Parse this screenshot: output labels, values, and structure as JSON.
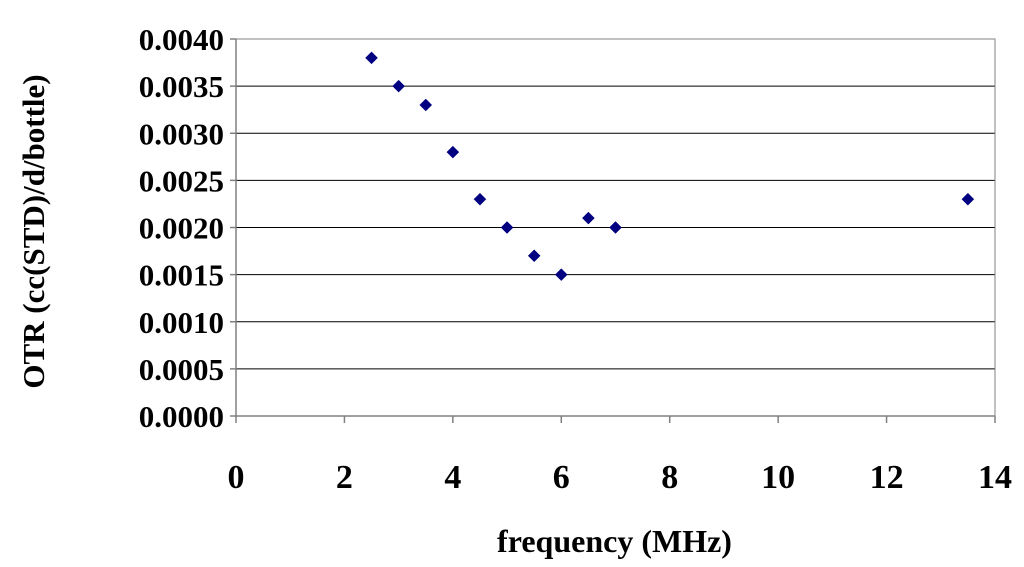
{
  "colors": {
    "marker": "#000080",
    "grid": "#000000",
    "axis": "#808080",
    "plot_border": "#808080",
    "text": "#000000"
  },
  "chart_data": {
    "type": "scatter",
    "title": "",
    "xlabel": "frequency (MHz)",
    "ylabel": "OTR (cc(STD)/d/bottle)",
    "xlim": [
      0,
      14
    ],
    "ylim": [
      0,
      0.004
    ],
    "x_ticks": [
      0,
      2,
      4,
      6,
      8,
      10,
      12,
      14
    ],
    "x_tick_labels": [
      "0",
      "2",
      "4",
      "6",
      "8",
      "10",
      "12",
      "14"
    ],
    "y_ticks": [
      0,
      0.0005,
      0.001,
      0.0015,
      0.002,
      0.0025,
      0.003,
      0.0035,
      0.004
    ],
    "y_tick_labels": [
      "0.0000",
      "0.0005",
      "0.0010",
      "0.0015",
      "0.0020",
      "0.0025",
      "0.0030",
      "0.0035",
      "0.0040"
    ],
    "grid": "horizontal",
    "legend": "none",
    "marker": "diamond",
    "points": [
      {
        "x": 2.5,
        "y": 0.0038
      },
      {
        "x": 3.0,
        "y": 0.0035
      },
      {
        "x": 3.5,
        "y": 0.0033
      },
      {
        "x": 4.0,
        "y": 0.0028
      },
      {
        "x": 4.5,
        "y": 0.0023
      },
      {
        "x": 5.0,
        "y": 0.002
      },
      {
        "x": 5.5,
        "y": 0.0017
      },
      {
        "x": 6.0,
        "y": 0.0015
      },
      {
        "x": 6.5,
        "y": 0.0021
      },
      {
        "x": 7.0,
        "y": 0.002
      },
      {
        "x": 13.5,
        "y": 0.0023
      }
    ]
  }
}
